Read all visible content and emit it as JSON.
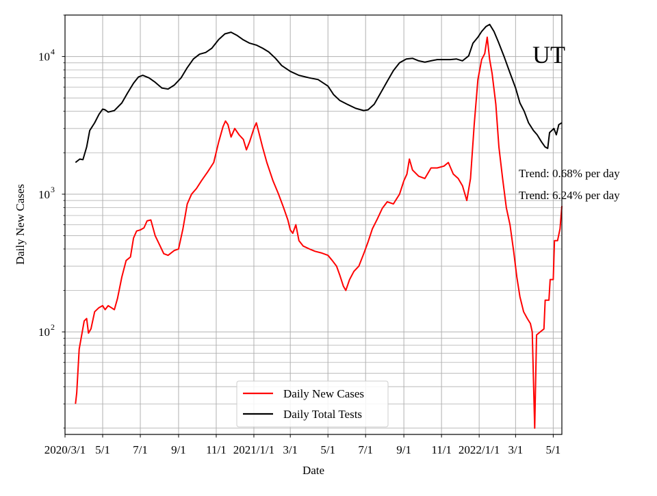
{
  "chart_data": {
    "type": "line",
    "title": "",
    "xlabel": "Date",
    "ylabel": "Daily New Cases",
    "yscale": "log",
    "ylim": [
      18,
      20000
    ],
    "xlim": [
      "2020-03-01",
      "2022-05-15"
    ],
    "grid": true,
    "legend_position": "lower-center",
    "x_ticks": [
      {
        "date": "2020-03-01",
        "label": "2020/3/1"
      },
      {
        "date": "2020-05-01",
        "label": "5/1"
      },
      {
        "date": "2020-07-01",
        "label": "7/1"
      },
      {
        "date": "2020-09-01",
        "label": "9/1"
      },
      {
        "date": "2020-11-01",
        "label": "11/1"
      },
      {
        "date": "2021-01-01",
        "label": "2021/1/1"
      },
      {
        "date": "2021-03-01",
        "label": "3/1"
      },
      {
        "date": "2021-05-01",
        "label": "5/1"
      },
      {
        "date": "2021-07-01",
        "label": "7/1"
      },
      {
        "date": "2021-09-01",
        "label": "9/1"
      },
      {
        "date": "2021-11-01",
        "label": "11/1"
      },
      {
        "date": "2022-01-01",
        "label": "2022/1/1"
      },
      {
        "date": "2022-03-01",
        "label": "3/1"
      },
      {
        "date": "2022-05-01",
        "label": "5/1"
      }
    ],
    "y_ticks": [
      {
        "value": 100,
        "base": "10",
        "exp": "2"
      },
      {
        "value": 1000,
        "base": "10",
        "exp": "3"
      },
      {
        "value": 10000,
        "base": "10",
        "exp": "4"
      }
    ],
    "annotations": {
      "state": "UT",
      "trend_tests": "Trend: 0.68% per day",
      "trend_cases": "Trend: 6.24% per day"
    },
    "series": [
      {
        "name": "Daily Total Tests",
        "color": "#000000",
        "points": [
          [
            "2020-03-18",
            1700
          ],
          [
            "2020-03-25",
            1800
          ],
          [
            "2020-03-30",
            1780
          ],
          [
            "2020-04-05",
            2200
          ],
          [
            "2020-04-10",
            2900
          ],
          [
            "2020-04-18",
            3300
          ],
          [
            "2020-04-25",
            3800
          ],
          [
            "2020-05-01",
            4150
          ],
          [
            "2020-05-05",
            4100
          ],
          [
            "2020-05-10",
            3950
          ],
          [
            "2020-05-20",
            4050
          ],
          [
            "2020-06-01",
            4600
          ],
          [
            "2020-06-10",
            5400
          ],
          [
            "2020-06-20",
            6400
          ],
          [
            "2020-06-28",
            7100
          ],
          [
            "2020-07-05",
            7300
          ],
          [
            "2020-07-15",
            7000
          ],
          [
            "2020-07-25",
            6500
          ],
          [
            "2020-08-05",
            5900
          ],
          [
            "2020-08-15",
            5800
          ],
          [
            "2020-08-25",
            6200
          ],
          [
            "2020-09-05",
            7000
          ],
          [
            "2020-09-15",
            8300
          ],
          [
            "2020-09-25",
            9600
          ],
          [
            "2020-10-05",
            10400
          ],
          [
            "2020-10-15",
            10700
          ],
          [
            "2020-10-25",
            11500
          ],
          [
            "2020-11-05",
            13300
          ],
          [
            "2020-11-15",
            14600
          ],
          [
            "2020-11-25",
            15000
          ],
          [
            "2020-12-05",
            14200
          ],
          [
            "2020-12-15",
            13200
          ],
          [
            "2020-12-25",
            12500
          ],
          [
            "2021-01-05",
            12100
          ],
          [
            "2021-01-15",
            11500
          ],
          [
            "2021-01-25",
            10800
          ],
          [
            "2021-02-05",
            9700
          ],
          [
            "2021-02-15",
            8600
          ],
          [
            "2021-03-01",
            7800
          ],
          [
            "2021-03-15",
            7300
          ],
          [
            "2021-04-01",
            7000
          ],
          [
            "2021-04-15",
            6800
          ],
          [
            "2021-05-01",
            6100
          ],
          [
            "2021-05-10",
            5300
          ],
          [
            "2021-05-20",
            4800
          ],
          [
            "2021-06-01",
            4500
          ],
          [
            "2021-06-15",
            4200
          ],
          [
            "2021-06-28",
            4050
          ],
          [
            "2021-07-05",
            4100
          ],
          [
            "2021-07-15",
            4500
          ],
          [
            "2021-07-25",
            5400
          ],
          [
            "2021-08-05",
            6600
          ],
          [
            "2021-08-15",
            7900
          ],
          [
            "2021-08-25",
            9000
          ],
          [
            "2021-09-05",
            9600
          ],
          [
            "2021-09-15",
            9700
          ],
          [
            "2021-09-25",
            9300
          ],
          [
            "2021-10-05",
            9100
          ],
          [
            "2021-10-15",
            9300
          ],
          [
            "2021-10-25",
            9500
          ],
          [
            "2021-11-05",
            9500
          ],
          [
            "2021-11-15",
            9500
          ],
          [
            "2021-11-25",
            9600
          ],
          [
            "2021-12-05",
            9300
          ],
          [
            "2021-12-15",
            10100
          ],
          [
            "2021-12-22",
            12500
          ],
          [
            "2021-12-30",
            13800
          ],
          [
            "2022-01-05",
            15200
          ],
          [
            "2022-01-12",
            16500
          ],
          [
            "2022-01-18",
            17100
          ],
          [
            "2022-01-25",
            15200
          ],
          [
            "2022-02-01",
            12800
          ],
          [
            "2022-02-10",
            10100
          ],
          [
            "2022-02-20",
            7600
          ],
          [
            "2022-03-01",
            5900
          ],
          [
            "2022-03-08",
            4600
          ],
          [
            "2022-03-15",
            4000
          ],
          [
            "2022-03-22",
            3300
          ],
          [
            "2022-03-30",
            2900
          ],
          [
            "2022-04-05",
            2700
          ],
          [
            "2022-04-12",
            2400
          ],
          [
            "2022-04-18",
            2200
          ],
          [
            "2022-04-22",
            2150
          ],
          [
            "2022-04-25",
            2800
          ],
          [
            "2022-05-02",
            3000
          ],
          [
            "2022-05-06",
            2700
          ],
          [
            "2022-05-10",
            3200
          ],
          [
            "2022-05-15",
            3300
          ]
        ]
      },
      {
        "name": "Daily New Cases",
        "color": "#ff0000",
        "points": [
          [
            "2020-03-18",
            30
          ],
          [
            "2020-03-20",
            36
          ],
          [
            "2020-03-24",
            75
          ],
          [
            "2020-03-28",
            95
          ],
          [
            "2020-04-01",
            120
          ],
          [
            "2020-04-05",
            125
          ],
          [
            "2020-04-08",
            98
          ],
          [
            "2020-04-12",
            105
          ],
          [
            "2020-04-18",
            140
          ],
          [
            "2020-04-25",
            150
          ],
          [
            "2020-05-01",
            155
          ],
          [
            "2020-05-05",
            145
          ],
          [
            "2020-05-10",
            155
          ],
          [
            "2020-05-15",
            150
          ],
          [
            "2020-05-20",
            145
          ],
          [
            "2020-05-25",
            175
          ],
          [
            "2020-06-01",
            250
          ],
          [
            "2020-06-08",
            330
          ],
          [
            "2020-06-15",
            350
          ],
          [
            "2020-06-20",
            480
          ],
          [
            "2020-06-25",
            540
          ],
          [
            "2020-07-01",
            550
          ],
          [
            "2020-07-07",
            570
          ],
          [
            "2020-07-12",
            640
          ],
          [
            "2020-07-18",
            650
          ],
          [
            "2020-07-25",
            500
          ],
          [
            "2020-08-01",
            430
          ],
          [
            "2020-08-08",
            370
          ],
          [
            "2020-08-15",
            360
          ],
          [
            "2020-08-25",
            390
          ],
          [
            "2020-09-01",
            400
          ],
          [
            "2020-09-08",
            560
          ],
          [
            "2020-09-15",
            850
          ],
          [
            "2020-09-22",
            1000
          ],
          [
            "2020-09-30",
            1100
          ],
          [
            "2020-10-08",
            1250
          ],
          [
            "2020-10-18",
            1450
          ],
          [
            "2020-10-28",
            1700
          ],
          [
            "2020-11-05",
            2400
          ],
          [
            "2020-11-12",
            3100
          ],
          [
            "2020-11-16",
            3400
          ],
          [
            "2020-11-20",
            3200
          ],
          [
            "2020-11-25",
            2600
          ],
          [
            "2020-12-01",
            3000
          ],
          [
            "2020-12-08",
            2700
          ],
          [
            "2020-12-15",
            2500
          ],
          [
            "2020-12-20",
            2100
          ],
          [
            "2020-12-25",
            2400
          ],
          [
            "2021-01-01",
            3000
          ],
          [
            "2021-01-05",
            3300
          ],
          [
            "2021-01-10",
            2700
          ],
          [
            "2021-01-15",
            2200
          ],
          [
            "2021-01-22",
            1700
          ],
          [
            "2021-02-01",
            1250
          ],
          [
            "2021-02-10",
            1000
          ],
          [
            "2021-02-18",
            800
          ],
          [
            "2021-02-25",
            650
          ],
          [
            "2021-03-01",
            550
          ],
          [
            "2021-03-05",
            520
          ],
          [
            "2021-03-10",
            600
          ],
          [
            "2021-03-15",
            460
          ],
          [
            "2021-03-22",
            420
          ],
          [
            "2021-04-01",
            400
          ],
          [
            "2021-04-10",
            385
          ],
          [
            "2021-04-20",
            375
          ],
          [
            "2021-05-01",
            360
          ],
          [
            "2021-05-08",
            330
          ],
          [
            "2021-05-15",
            300
          ],
          [
            "2021-05-20",
            260
          ],
          [
            "2021-05-26",
            215
          ],
          [
            "2021-05-30",
            200
          ],
          [
            "2021-06-05",
            240
          ],
          [
            "2021-06-12",
            275
          ],
          [
            "2021-06-20",
            300
          ],
          [
            "2021-06-28",
            370
          ],
          [
            "2021-07-05",
            450
          ],
          [
            "2021-07-12",
            560
          ],
          [
            "2021-07-20",
            660
          ],
          [
            "2021-07-28",
            790
          ],
          [
            "2021-08-05",
            880
          ],
          [
            "2021-08-15",
            850
          ],
          [
            "2021-08-25",
            1000
          ],
          [
            "2021-09-01",
            1250
          ],
          [
            "2021-09-06",
            1400
          ],
          [
            "2021-09-10",
            1800
          ],
          [
            "2021-09-15",
            1500
          ],
          [
            "2021-09-25",
            1350
          ],
          [
            "2021-10-05",
            1300
          ],
          [
            "2021-10-15",
            1550
          ],
          [
            "2021-10-25",
            1550
          ],
          [
            "2021-11-05",
            1600
          ],
          [
            "2021-11-12",
            1700
          ],
          [
            "2021-11-20",
            1400
          ],
          [
            "2021-11-28",
            1300
          ],
          [
            "2021-12-05",
            1150
          ],
          [
            "2021-12-12",
            900
          ],
          [
            "2021-12-18",
            1300
          ],
          [
            "2021-12-24",
            3200
          ],
          [
            "2021-12-30",
            6800
          ],
          [
            "2022-01-05",
            9500
          ],
          [
            "2022-01-10",
            10500
          ],
          [
            "2022-01-14",
            13800
          ],
          [
            "2022-01-18",
            9500
          ],
          [
            "2022-01-22",
            7500
          ],
          [
            "2022-01-28",
            4500
          ],
          [
            "2022-02-02",
            2200
          ],
          [
            "2022-02-08",
            1300
          ],
          [
            "2022-02-14",
            800
          ],
          [
            "2022-02-20",
            600
          ],
          [
            "2022-02-26",
            380
          ],
          [
            "2022-03-03",
            250
          ],
          [
            "2022-03-08",
            180
          ],
          [
            "2022-03-14",
            140
          ],
          [
            "2022-03-20",
            125
          ],
          [
            "2022-03-25",
            115
          ],
          [
            "2022-03-28",
            100
          ],
          [
            "2022-04-01",
            20
          ],
          [
            "2022-04-04",
            95
          ],
          [
            "2022-04-10",
            100
          ],
          [
            "2022-04-16",
            105
          ],
          [
            "2022-04-18",
            170
          ],
          [
            "2022-04-24",
            170
          ],
          [
            "2022-04-26",
            240
          ],
          [
            "2022-05-01",
            240
          ],
          [
            "2022-05-03",
            460
          ],
          [
            "2022-05-08",
            460
          ],
          [
            "2022-05-12",
            560
          ],
          [
            "2022-05-15",
            820
          ]
        ]
      }
    ]
  }
}
